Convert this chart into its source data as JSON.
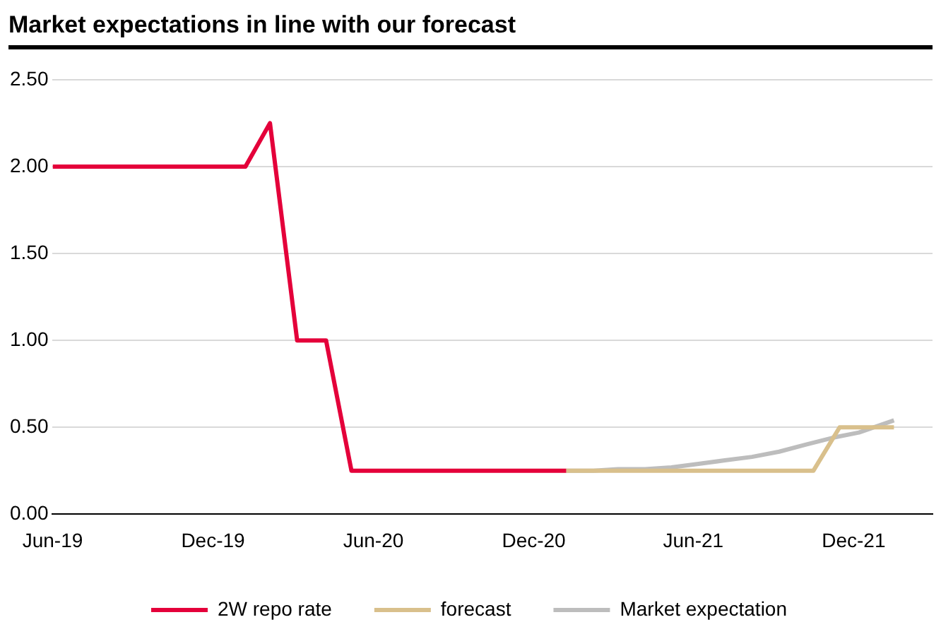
{
  "chart_data": {
    "type": "line",
    "title": "Market expectations in line with our forecast",
    "xlim": [
      "2019-06-01",
      "2022-03-01"
    ],
    "xticks": [
      {
        "value": "2019-06-01",
        "label": "Jun-19"
      },
      {
        "value": "2019-12-01",
        "label": "Dec-19"
      },
      {
        "value": "2020-06-01",
        "label": "Jun-20"
      },
      {
        "value": "2020-12-01",
        "label": "Dec-20"
      },
      {
        "value": "2021-06-01",
        "label": "Jun-21"
      },
      {
        "value": "2021-12-01",
        "label": "Dec-21"
      }
    ],
    "ylim": [
      0,
      2.5
    ],
    "yticks": [
      {
        "value": 0,
        "label": "0.00"
      },
      {
        "value": 0.5,
        "label": "0.50"
      },
      {
        "value": 1,
        "label": "1.00"
      },
      {
        "value": 1.5,
        "label": "1.50"
      },
      {
        "value": 2,
        "label": "2.00"
      },
      {
        "value": 2.5,
        "label": "2.50"
      }
    ],
    "grid": "y",
    "legend": "bottom",
    "marker": "none",
    "series": [
      {
        "name": "2W repo rate",
        "color": "#e4003a",
        "x": [
          "2019-06-01",
          "2020-01-07",
          "2020-02-04",
          "2020-03-06",
          "2020-04-08",
          "2020-05-07",
          "2021-01-07"
        ],
        "values": [
          2.0,
          2.0,
          2.25,
          1.0,
          1.0,
          0.25,
          0.25
        ]
      },
      {
        "name": "forecast",
        "color": "#d9c08c",
        "x": [
          "2021-01-07",
          "2021-10-16",
          "2021-11-15",
          "2022-01-16"
        ],
        "values": [
          0.25,
          0.25,
          0.5,
          0.5
        ]
      },
      {
        "name": "Market expectation",
        "color": "#bdbdbd",
        "x": [
          "2021-01-07",
          "2021-02-07",
          "2021-03-07",
          "2021-04-07",
          "2021-05-07",
          "2021-06-07",
          "2021-07-07",
          "2021-08-07",
          "2021-09-07",
          "2021-10-07",
          "2021-11-07",
          "2021-12-07",
          "2022-01-16"
        ],
        "values": [
          0.25,
          0.25,
          0.26,
          0.26,
          0.27,
          0.29,
          0.31,
          0.33,
          0.36,
          0.4,
          0.44,
          0.47,
          0.54
        ]
      }
    ]
  }
}
